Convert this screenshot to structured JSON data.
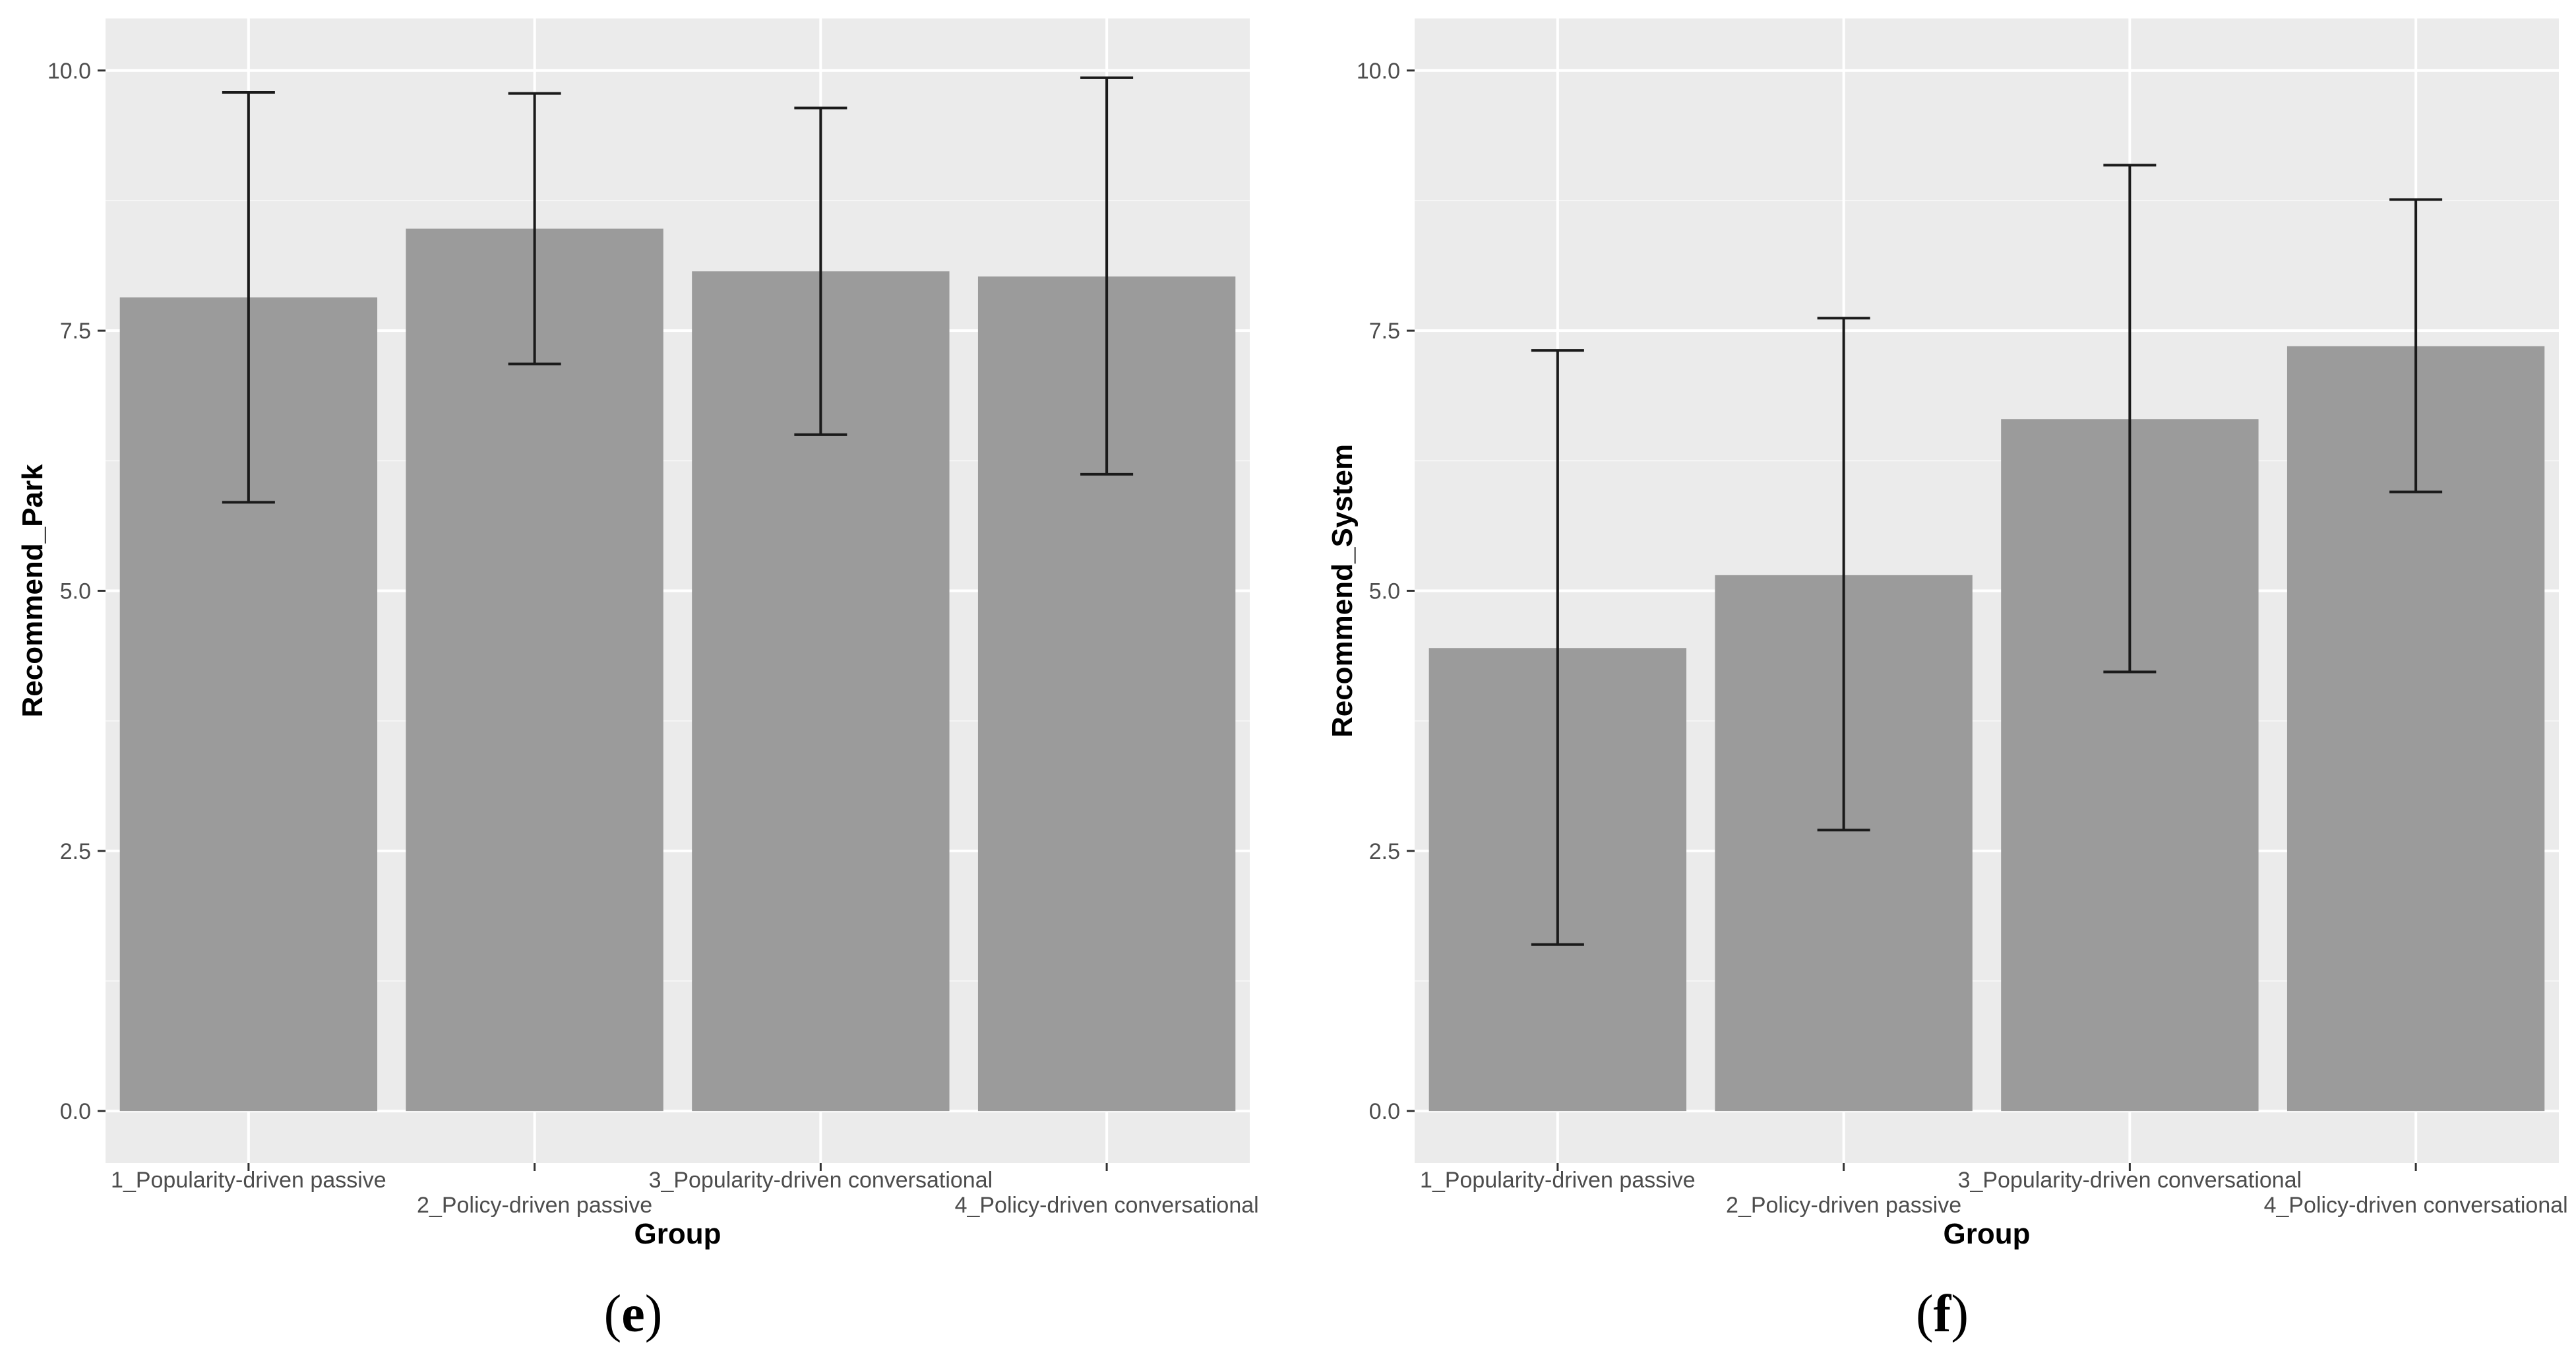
{
  "chart_data": [
    {
      "type": "bar",
      "panel_label": "(e)",
      "panel_letter": "e",
      "categories": [
        "1_Popularity-driven passive",
        "2_Policy-driven passive",
        "3_Popularity-driven conversational",
        "4_Policy-driven conversational"
      ],
      "values": [
        7.82,
        8.48,
        8.07,
        8.02
      ],
      "error_low": [
        5.85,
        7.18,
        6.5,
        6.12
      ],
      "error_high": [
        9.79,
        9.78,
        9.64,
        9.93
      ],
      "xlabel": "Group",
      "ylabel": "Recommend_Park",
      "ylim": [
        -0.5,
        10.5
      ],
      "yticks": [
        0.0,
        2.5,
        5.0,
        7.5,
        10.0
      ],
      "ytick_labels": [
        "0.0",
        "2.5",
        "5.0",
        "7.5",
        "10.0"
      ],
      "grid": true
    },
    {
      "type": "bar",
      "panel_label": "(f)",
      "panel_letter": "f",
      "categories": [
        "1_Popularity-driven passive",
        "2_Policy-driven passive",
        "3_Popularity-driven conversational",
        "4_Policy-driven conversational"
      ],
      "values": [
        4.45,
        5.15,
        6.65,
        7.35
      ],
      "error_low": [
        1.6,
        2.7,
        4.22,
        5.95
      ],
      "error_high": [
        7.31,
        7.62,
        9.09,
        8.76
      ],
      "xlabel": "Group",
      "ylabel": "Recommend_System",
      "ylim": [
        -0.5,
        10.5
      ],
      "yticks": [
        0.0,
        2.5,
        5.0,
        7.5,
        10.0
      ],
      "ytick_labels": [
        "0.0",
        "2.5",
        "5.0",
        "7.5",
        "10.0"
      ],
      "grid": true
    }
  ],
  "colors": {
    "panel_background": "#ebebeb",
    "grid_major": "#ffffff",
    "grid_minor": "#f5f5f5",
    "bar_fill": "#9b9b9b",
    "error_bar": "#1a1a1a",
    "tick_text": "#4d4d4d",
    "title_text": "#000000"
  }
}
